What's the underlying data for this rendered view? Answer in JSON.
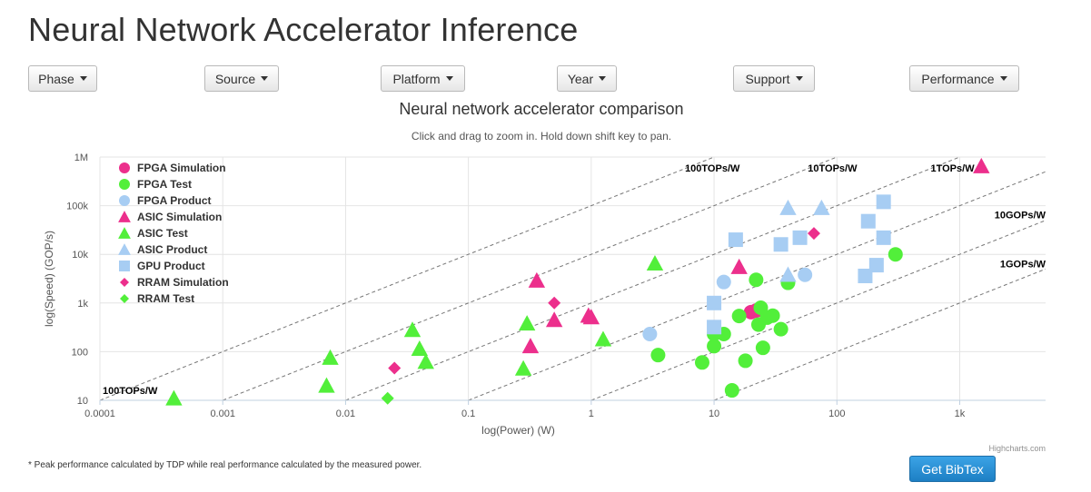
{
  "page": {
    "title": "Neural Network Accelerator Inference",
    "footnote": "* Peak performance calculated by TDP while real performance calculated by the measured power.",
    "bibtex_label": "Get BibTex"
  },
  "filters": [
    {
      "label": "Phase"
    },
    {
      "label": "Source"
    },
    {
      "label": "Platform"
    },
    {
      "label": "Year"
    },
    {
      "label": "Support"
    },
    {
      "label": "Performance"
    }
  ],
  "colors": {
    "pink": "#ec2f8c",
    "green": "#52ef3a",
    "blue": "#a7cdf3",
    "grid": "#e4e4e4",
    "refline": "#777777"
  },
  "chart_data": {
    "type": "scatter",
    "title": "Neural network accelerator comparison",
    "subtitle": "Click and drag to zoom in. Hold down shift key to pan.",
    "xlabel": "log(Power) (W)",
    "ylabel": "log(Speed) (GOP/s)",
    "x_scale": "log",
    "y_scale": "log",
    "xlim": [
      0.0001,
      5000
    ],
    "ylim": [
      10,
      1000000
    ],
    "x_ticks": [
      {
        "v": 0.0001,
        "label": "0.0001"
      },
      {
        "v": 0.001,
        "label": "0.001"
      },
      {
        "v": 0.01,
        "label": "0.01"
      },
      {
        "v": 0.1,
        "label": "0.1"
      },
      {
        "v": 1,
        "label": "1"
      },
      {
        "v": 10,
        "label": "10"
      },
      {
        "v": 100,
        "label": "100"
      },
      {
        "v": 1000,
        "label": "1k"
      }
    ],
    "y_ticks": [
      {
        "v": 10,
        "label": "10"
      },
      {
        "v": 100,
        "label": "100"
      },
      {
        "v": 1000,
        "label": "1k"
      },
      {
        "v": 10000,
        "label": "10k"
      },
      {
        "v": 100000,
        "label": "100k"
      },
      {
        "v": 1000000,
        "label": "1M"
      }
    ],
    "grid": true,
    "legend_position": "top-left",
    "credits": "Highcharts.com",
    "efficiency_lines": [
      {
        "gops_per_w": 100000,
        "label": "100TOPs/W",
        "label_at": "top"
      },
      {
        "gops_per_w": 10000,
        "label": "10TOPs/W",
        "label_at": "top"
      },
      {
        "gops_per_w": 1000,
        "label": "1TOPs/W",
        "label_at": "top"
      },
      {
        "gops_per_w": 100,
        "label": "",
        "label_at": "none"
      },
      {
        "gops_per_w": 10,
        "label": "10GOPs/W",
        "label_at": "right"
      },
      {
        "gops_per_w": 1,
        "label": "1GOPs/W",
        "label_at": "right"
      }
    ],
    "corner_label": "100TOPs/W",
    "series": [
      {
        "name": "FPGA Simulation",
        "marker": "circle",
        "color": "#ec2f8c",
        "points": [
          [
            20,
            650
          ],
          [
            22,
            700
          ]
        ]
      },
      {
        "name": "FPGA Test",
        "marker": "circle",
        "color": "#52ef3a",
        "points": [
          [
            3.5,
            85
          ],
          [
            8,
            60
          ],
          [
            10,
            130
          ],
          [
            10,
            230
          ],
          [
            12,
            230
          ],
          [
            14,
            16
          ],
          [
            16,
            540
          ],
          [
            18,
            65
          ],
          [
            22,
            3000
          ],
          [
            23,
            360
          ],
          [
            24,
            800
          ],
          [
            25,
            120
          ],
          [
            27,
            500
          ],
          [
            30,
            550
          ],
          [
            35,
            290
          ],
          [
            40,
            2600
          ],
          [
            300,
            10000
          ]
        ]
      },
      {
        "name": "FPGA Product",
        "marker": "circle",
        "color": "#a7cdf3",
        "points": [
          [
            3,
            230
          ],
          [
            12,
            2700
          ],
          [
            55,
            3800
          ]
        ]
      },
      {
        "name": "ASIC Simulation",
        "marker": "triangle",
        "color": "#ec2f8c",
        "points": [
          [
            0.32,
            130
          ],
          [
            0.36,
            2900
          ],
          [
            0.5,
            450
          ],
          [
            0.95,
            550
          ],
          [
            1.0,
            510
          ],
          [
            16,
            5500
          ],
          [
            1500,
            650000
          ]
        ]
      },
      {
        "name": "ASIC Test",
        "marker": "triangle",
        "color": "#52ef3a",
        "points": [
          [
            0.0004,
            11
          ],
          [
            0.007,
            20
          ],
          [
            0.0075,
            75
          ],
          [
            0.035,
            280
          ],
          [
            0.04,
            115
          ],
          [
            0.045,
            62
          ],
          [
            0.28,
            45
          ],
          [
            0.3,
            380
          ],
          [
            1.25,
            180
          ],
          [
            3.3,
            6500
          ]
        ]
      },
      {
        "name": "ASIC Product",
        "marker": "triangle",
        "color": "#a7cdf3",
        "points": [
          [
            40,
            3800
          ],
          [
            40,
            90000
          ],
          [
            75,
            90000
          ]
        ]
      },
      {
        "name": "GPU Product",
        "marker": "square",
        "color": "#a7cdf3",
        "points": [
          [
            10,
            320
          ],
          [
            10,
            1000
          ],
          [
            15,
            20000
          ],
          [
            35,
            16000
          ],
          [
            50,
            22000
          ],
          [
            170,
            3600
          ],
          [
            180,
            48000
          ],
          [
            210,
            6000
          ],
          [
            240,
            22000
          ],
          [
            240,
            120000
          ]
        ]
      },
      {
        "name": "RRAM Simulation",
        "marker": "diamond",
        "color": "#ec2f8c",
        "points": [
          [
            0.025,
            46
          ],
          [
            0.5,
            1000
          ],
          [
            65,
            27000
          ]
        ]
      },
      {
        "name": "RRAM Test",
        "marker": "diamond",
        "color": "#52ef3a",
        "points": [
          [
            0.022,
            11
          ]
        ]
      }
    ]
  }
}
